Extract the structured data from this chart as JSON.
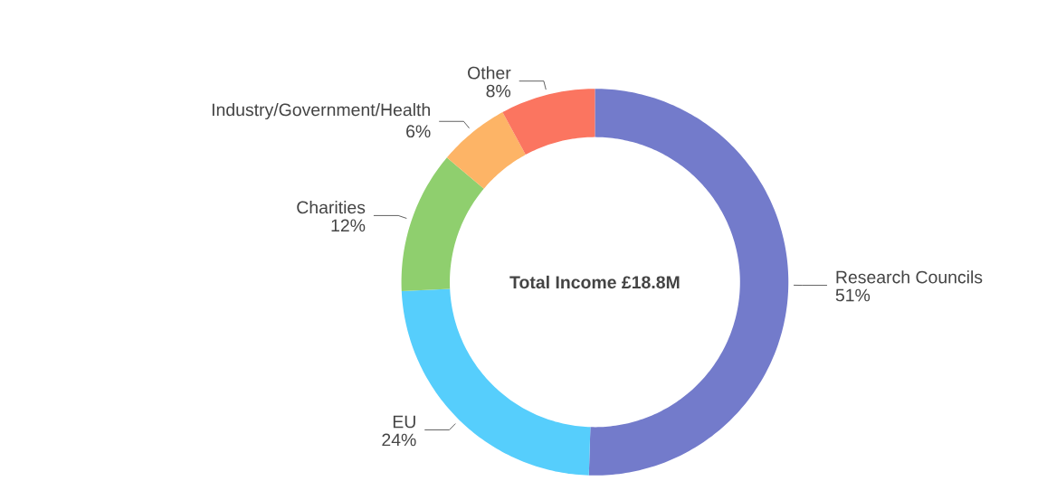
{
  "chart_data": {
    "type": "donut",
    "categories": [
      "Research Councils",
      "EU",
      "Charities",
      "Industry/Government/Health",
      "Other"
    ],
    "values": [
      51,
      24,
      12,
      6,
      8
    ],
    "value_labels": [
      "51%",
      "24%",
      "12%",
      "6%",
      "8%"
    ],
    "colors": [
      "#737bcb",
      "#56cefc",
      "#8fcf6e",
      "#fdb466",
      "#fb7560"
    ],
    "annotations": [
      "Total Income £18.8M"
    ]
  }
}
